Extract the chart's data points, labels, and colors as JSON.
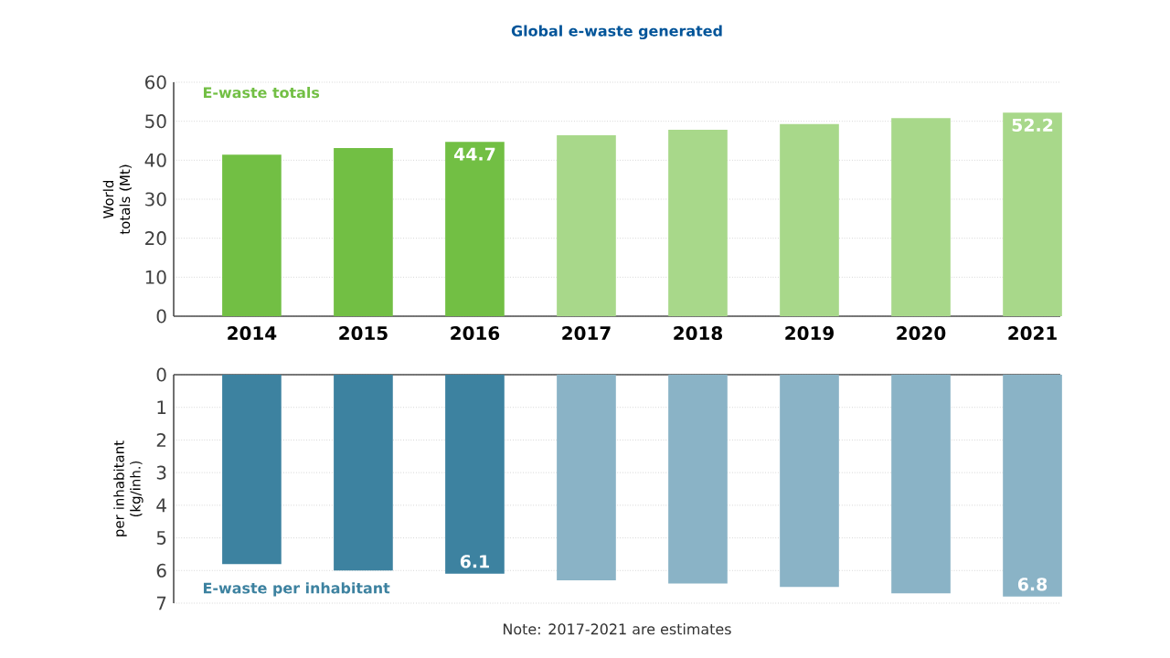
{
  "chart_data": [
    {
      "type": "bar",
      "title": "Global e-waste generated",
      "ylabel": "World totals (Mt)",
      "categories": [
        "2014",
        "2015",
        "2016",
        "2017",
        "2018",
        "2019",
        "2020",
        "2021"
      ],
      "values": [
        41.4,
        43.1,
        44.7,
        46.4,
        47.8,
        49.3,
        50.8,
        52.2
      ],
      "colors": [
        "#72bf44",
        "#72bf44",
        "#72bf44",
        "#a8d88a",
        "#a8d88a",
        "#a8d88a",
        "#a8d88a",
        "#a8d88a"
      ],
      "value_labels": [
        null,
        null,
        "44.7",
        null,
        null,
        null,
        null,
        "52.2"
      ],
      "ylim": [
        0,
        60
      ],
      "yticks": [
        0,
        10,
        20,
        30,
        40,
        50,
        60
      ],
      "grid": "y",
      "annotations": [
        "E-waste totals"
      ]
    },
    {
      "type": "bar",
      "ylabel": "per inhabitant (kg/inh.)",
      "categories": [
        "2014",
        "2015",
        "2016",
        "2017",
        "2018",
        "2019",
        "2020",
        "2021"
      ],
      "values": [
        5.8,
        6.0,
        6.1,
        6.3,
        6.4,
        6.5,
        6.7,
        6.8
      ],
      "colors": [
        "#3d82a0",
        "#3d82a0",
        "#3d82a0",
        "#8ab3c6",
        "#8ab3c6",
        "#8ab3c6",
        "#8ab3c6",
        "#8ab3c6"
      ],
      "value_labels": [
        null,
        null,
        "6.1",
        null,
        null,
        null,
        null,
        "6.8"
      ],
      "ylim": [
        7,
        0
      ],
      "yticks": [
        0,
        1,
        2,
        3,
        4,
        5,
        6,
        7
      ],
      "grid": "y",
      "tick_labels": "y",
      "annotations": [
        "E-waste per inhabitant",
        "Note: 2017-2021 are estimates"
      ]
    }
  ]
}
